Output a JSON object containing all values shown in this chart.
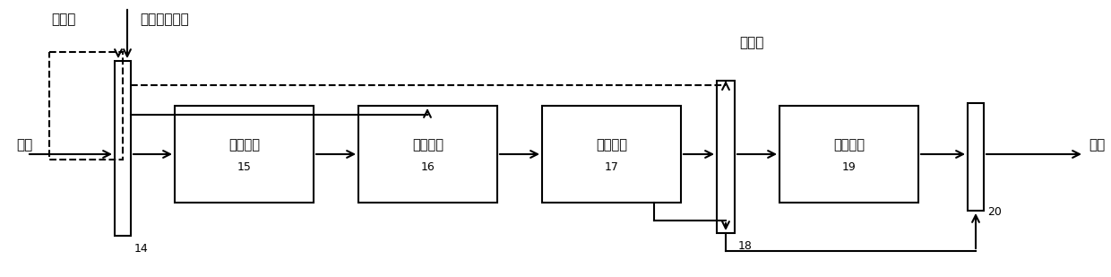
{
  "fig_width": 12.4,
  "fig_height": 3.09,
  "dpi": 100,
  "bg_color": "#ffffff",
  "lc": "#000000",
  "lw": 1.5,
  "label_fuhao_left": "符号位",
  "label_fuhao_ctrl": "符号控制信号",
  "label_fuhao_right": "符号位",
  "label_input": "输入",
  "label_output": "输出",
  "box15_label": "取反单元",
  "box15_num": "15",
  "box16_label": "移位单元",
  "box16_num": "16",
  "box17_label": "累加单元",
  "box17_num": "17",
  "box19_label": "取反单元",
  "box19_num": "19",
  "num14": "14",
  "num18": "18",
  "num20": "20",
  "fs_main": 11,
  "fs_small": 9,
  "fs_io": 11
}
